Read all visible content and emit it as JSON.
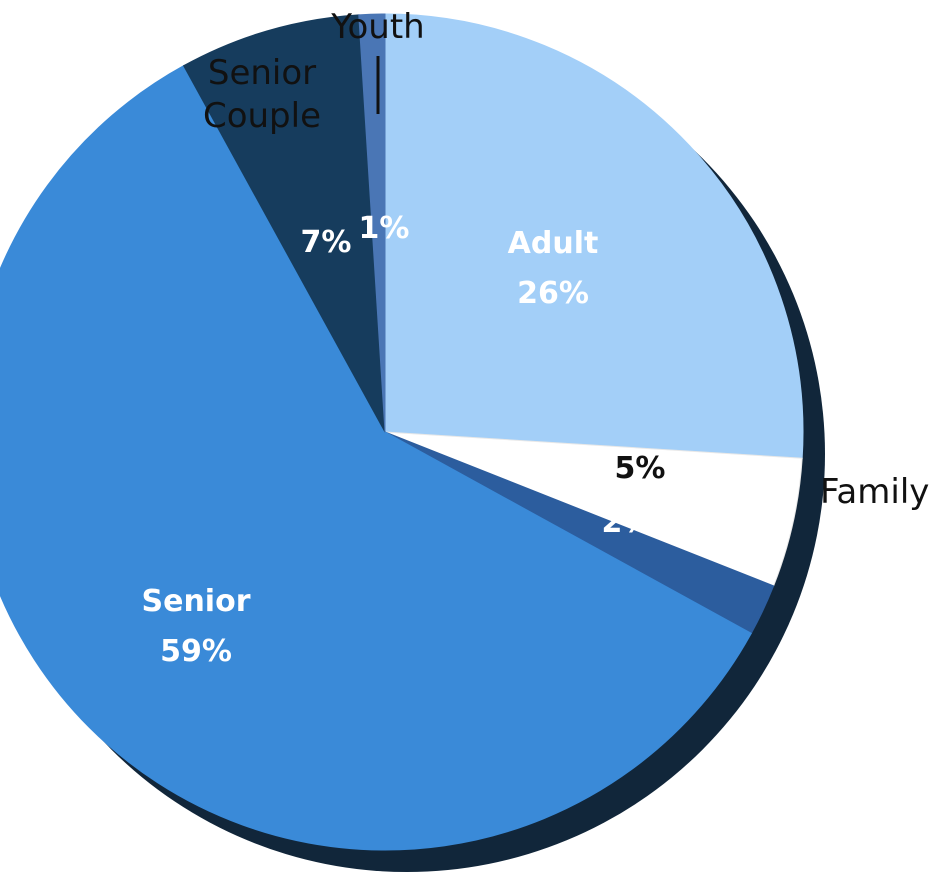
{
  "chart_data": {
    "type": "pie",
    "slices": [
      {
        "label": "Adult",
        "value": 26,
        "value_label": "26%",
        "color": "#a3cff8",
        "label_color": "#ffffff"
      },
      {
        "label": "Family",
        "value": 5,
        "value_label": "5%",
        "color": "#ffffff",
        "label_color": "#111111"
      },
      {
        "label": "",
        "value": 2,
        "value_label": "2%",
        "color": "#2c5d9e",
        "label_color": "#ffffff"
      },
      {
        "label": "Senior",
        "value": 59,
        "value_label": "59%",
        "color": "#3a8ad8",
        "label_color": "#ffffff"
      },
      {
        "label": "Senior Couple",
        "value": 7,
        "value_label": "7%",
        "color": "#163c5d",
        "label_color": "#ffffff"
      },
      {
        "label": "Youth",
        "value": 1,
        "value_label": "1%",
        "color": "#4a76b5",
        "label_color": "#ffffff"
      }
    ],
    "outside_labels": {
      "senior_couple_line1": "Senior",
      "senior_couple_line2": "Couple",
      "youth": "Youth",
      "family": "Family"
    },
    "inside_labels": {
      "adult_name": "Adult",
      "senior_name": "Senior"
    },
    "colors": {
      "shadow": "#11263a",
      "edge": "#1a2f44"
    }
  }
}
